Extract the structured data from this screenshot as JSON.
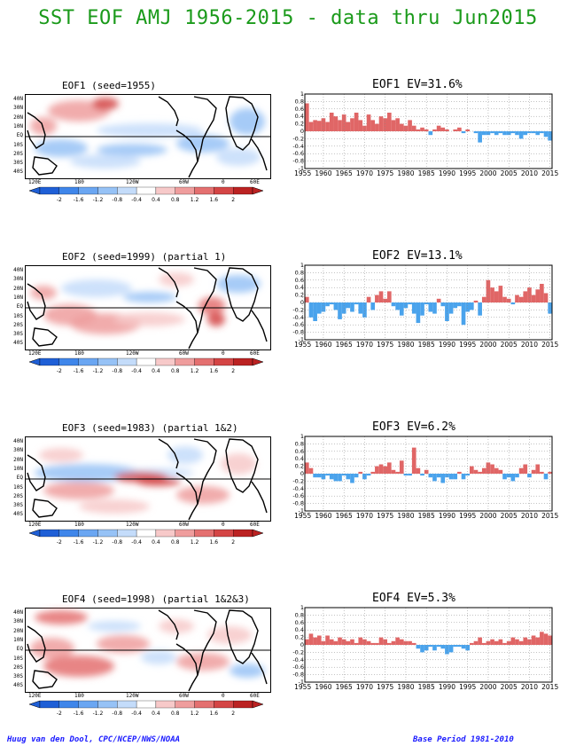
{
  "title": "SST EOF AMJ 1956-2015 - data thru Jun2015",
  "footer": {
    "left": "Huug van den Dool, CPC/NCEP/NWS/NOAA",
    "right": "Base Period 1981-2010"
  },
  "map_axes": {
    "lat_labels": [
      "40N",
      "30N",
      "20N",
      "10N",
      "EQ",
      "10S",
      "20S",
      "30S",
      "40S"
    ],
    "lon_labels": [
      "120E",
      "180",
      "120W",
      "60W",
      "0",
      "60E"
    ]
  },
  "colorbar": {
    "labels": [
      "-2",
      "-1.6",
      "-1.2",
      "-0.8",
      "-0.4",
      "0.4",
      "0.8",
      "1.2",
      "1.6",
      "2"
    ],
    "colors": [
      "#1f5fd6",
      "#3f86ea",
      "#6aa6f2",
      "#96c2f6",
      "#c4dcfa",
      "#ffffff",
      "#f7c9c9",
      "#ef9d9d",
      "#e47070",
      "#d44545",
      "#bb2222"
    ]
  },
  "panels": [
    {
      "map_title": "EOF1  (seed=1955)",
      "ts_title": "EOF1  EV=31.6%",
      "pattern": "eof1"
    },
    {
      "map_title": "EOF2  (seed=1999) (partial 1)",
      "ts_title": "EOF2  EV=13.1%",
      "pattern": "eof2"
    },
    {
      "map_title": "EOF3  (seed=1983) (partial 1&2)",
      "ts_title": "EOF3  EV=6.2%",
      "pattern": "eof3"
    },
    {
      "map_title": "EOF4  (seed=1998) (partial 1&2&3)",
      "ts_title": "EOF4  EV=5.3%",
      "pattern": "eof4"
    }
  ],
  "chart_data": [
    {
      "type": "bar",
      "title": "EOF1  EV=31.6%",
      "ylim": [
        -1,
        1
      ],
      "yticks": [
        "1",
        "0.8",
        "0.6",
        "0.4",
        "0.2",
        "0",
        "-0.2",
        "-0.4",
        "-0.6",
        "-0.8",
        "-1"
      ],
      "xticks": [
        "1955",
        "1960",
        "1965",
        "1970",
        "1975",
        "1980",
        "1985",
        "1990",
        "1995",
        "2000",
        "2005",
        "2010",
        "2015"
      ],
      "x_start": 1956,
      "positive_color": "#e06666",
      "negative_color": "#4aa3ec",
      "grid": "on",
      "values": [
        0.75,
        0.25,
        0.3,
        0.28,
        0.35,
        0.25,
        0.5,
        0.4,
        0.3,
        0.45,
        0.25,
        0.35,
        0.5,
        0.3,
        0.15,
        0.45,
        0.3,
        0.2,
        0.4,
        0.35,
        0.5,
        0.3,
        0.35,
        0.2,
        0.15,
        0.3,
        0.15,
        0.05,
        0.1,
        0.05,
        -0.1,
        0.05,
        0.15,
        0.1,
        0.05,
        0,
        0.05,
        0.1,
        -0.05,
        0.05,
        0,
        -0.05,
        -0.3,
        -0.1,
        -0.1,
        -0.05,
        -0.1,
        -0.05,
        -0.1,
        -0.1,
        -0.05,
        -0.1,
        -0.2,
        -0.1,
        -0.05,
        -0.05,
        -0.1,
        -0.05,
        -0.15,
        -0.25
      ]
    },
    {
      "type": "bar",
      "title": "EOF2  EV=13.1%",
      "ylim": [
        -1,
        1
      ],
      "yticks": [
        "1",
        "0.8",
        "0.6",
        "0.4",
        "0.2",
        "0",
        "-0.2",
        "-0.4",
        "-0.6",
        "-0.8",
        "-1"
      ],
      "xticks": [
        "1955",
        "1960",
        "1965",
        "1970",
        "1975",
        "1980",
        "1985",
        "1990",
        "1995",
        "2000",
        "2005",
        "2010",
        "2015"
      ],
      "x_start": 1956,
      "positive_color": "#e06666",
      "negative_color": "#4aa3ec",
      "grid": "on",
      "values": [
        0.15,
        -0.4,
        -0.5,
        -0.3,
        -0.25,
        -0.1,
        -0.05,
        -0.2,
        -0.45,
        -0.3,
        -0.15,
        -0.25,
        -0.05,
        -0.3,
        -0.4,
        0.15,
        -0.2,
        0.2,
        0.3,
        0.1,
        0.3,
        -0.1,
        -0.2,
        -0.35,
        -0.15,
        -0.05,
        -0.3,
        -0.55,
        -0.35,
        -0.05,
        -0.25,
        -0.3,
        0.1,
        -0.1,
        -0.5,
        -0.3,
        -0.15,
        -0.1,
        -0.6,
        -0.25,
        -0.2,
        0.05,
        -0.35,
        0.15,
        0.6,
        0.4,
        0.3,
        0.45,
        0.15,
        0.1,
        -0.05,
        0.2,
        0.15,
        0.3,
        0.4,
        0.2,
        0.35,
        0.5,
        0.25,
        -0.3
      ]
    },
    {
      "type": "bar",
      "title": "EOF3  EV=6.2%",
      "ylim": [
        -1,
        1
      ],
      "yticks": [
        "1",
        "0.8",
        "0.6",
        "0.4",
        "0.2",
        "0",
        "-0.2",
        "-0.4",
        "-0.6",
        "-0.8",
        "-1"
      ],
      "xticks": [
        "1955",
        "1960",
        "1965",
        "1970",
        "1975",
        "1980",
        "1985",
        "1990",
        "1995",
        "2000",
        "2005",
        "2010",
        "2015"
      ],
      "x_start": 1956,
      "positive_color": "#e06666",
      "negative_color": "#4aa3ec",
      "grid": "on",
      "values": [
        0.3,
        0.15,
        -0.1,
        -0.1,
        -0.15,
        -0.05,
        -0.15,
        -0.2,
        -0.2,
        -0.05,
        -0.15,
        -0.25,
        -0.1,
        0.05,
        -0.15,
        -0.05,
        0.05,
        0.2,
        0.25,
        0.2,
        0.3,
        0.1,
        0.05,
        0.35,
        -0.05,
        -0.05,
        0.7,
        0.15,
        -0.05,
        0.1,
        -0.1,
        -0.2,
        -0.1,
        -0.25,
        -0.1,
        -0.15,
        -0.15,
        0.05,
        -0.15,
        -0.05,
        0.2,
        0.1,
        0.05,
        0.15,
        0.3,
        0.25,
        0.15,
        0.1,
        -0.15,
        -0.1,
        -0.2,
        -0.1,
        0.15,
        0.25,
        -0.1,
        0.1,
        0.25,
        0.05,
        -0.15,
        0.05
      ]
    },
    {
      "type": "bar",
      "title": "EOF4  EV=5.3%",
      "ylim": [
        -1,
        1
      ],
      "yticks": [
        "1",
        "0.8",
        "0.6",
        "0.4",
        "0.2",
        "0",
        "-0.2",
        "-0.4",
        "-0.6",
        "-0.8",
        "-1"
      ],
      "xticks": [
        "1955",
        "1960",
        "1965",
        "1970",
        "1975",
        "1980",
        "1985",
        "1990",
        "1995",
        "2000",
        "2005",
        "2010",
        "2015"
      ],
      "x_start": 1956,
      "positive_color": "#e06666",
      "negative_color": "#4aa3ec",
      "grid": "on",
      "values": [
        0.15,
        0.3,
        0.2,
        0.25,
        0.1,
        0.25,
        0.15,
        0.1,
        0.2,
        0.15,
        0.1,
        0.15,
        0.05,
        0.2,
        0.15,
        0.1,
        0.05,
        0.05,
        0.2,
        0.15,
        0.05,
        0.1,
        0.2,
        0.15,
        0.1,
        0.1,
        0.05,
        -0.1,
        -0.2,
        -0.15,
        -0.05,
        -0.15,
        -0.05,
        -0.1,
        -0.25,
        -0.2,
        -0.05,
        -0.05,
        -0.1,
        -0.15,
        0.05,
        0.1,
        0.2,
        0.05,
        0.1,
        0.15,
        0.1,
        0.15,
        0.05,
        0.1,
        0.2,
        0.15,
        0.1,
        0.2,
        0.15,
        0.25,
        0.2,
        0.35,
        0.3,
        0.25
      ]
    }
  ]
}
